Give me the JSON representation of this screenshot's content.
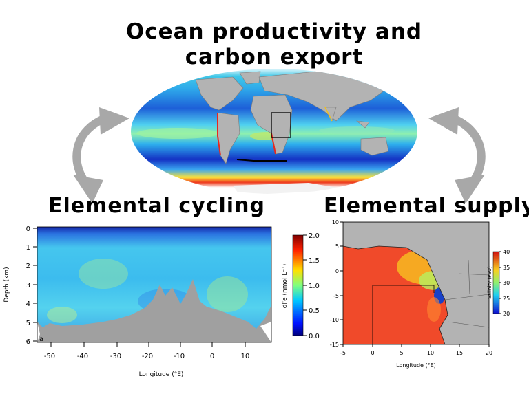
{
  "title": {
    "line1": "Ocean productivity and",
    "line2": "carbon export"
  },
  "panel_left": {
    "heading": "Elemental cycling",
    "panel_letter": "a",
    "xlabel": "Longitude (°E)",
    "ylabel": "Depth (km)",
    "x_ticks": [
      "-50",
      "-40",
      "-30",
      "-20",
      "-10",
      "0",
      "10"
    ],
    "y_ticks": [
      "0",
      "1",
      "2",
      "3",
      "4",
      "5",
      "6"
    ],
    "colorbar_label": "dFe (nmol L⁻¹)",
    "colorbar_ticks": [
      "0.0",
      "0.5",
      "1.0",
      "1.5",
      "2.0"
    ]
  },
  "panel_right": {
    "heading": "Elemental supply",
    "xlabel": "Longitude (°E)",
    "x_ticks": [
      "-5",
      "0",
      "5",
      "10",
      "15",
      "20"
    ],
    "y_ticks": [
      "10",
      "5",
      "0",
      "-5",
      "-10",
      "-15"
    ],
    "colorbar_label": "Salinity (PSU)",
    "colorbar_ticks": [
      "20",
      "25",
      "30",
      "35",
      "40"
    ]
  },
  "colors": {
    "arrow": "#a8a8a8",
    "land": "#b3b3b3",
    "ocean_high": "#e8281e",
    "ocean_low": "#1435c8"
  }
}
